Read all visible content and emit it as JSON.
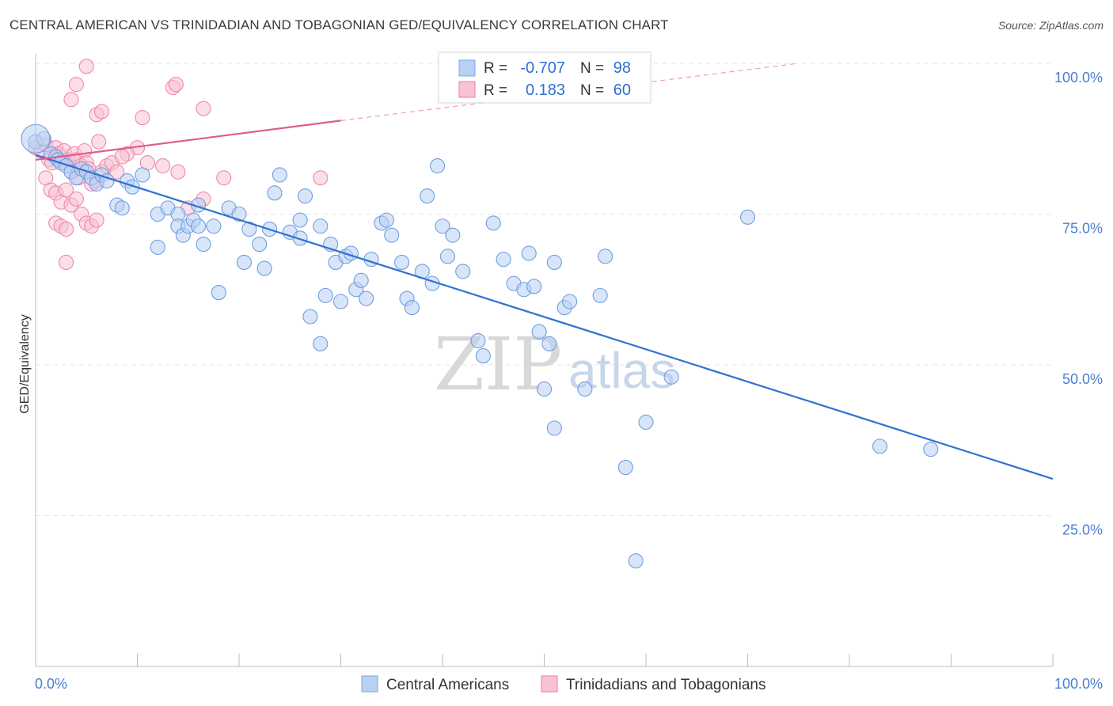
{
  "title": "CENTRAL AMERICAN VS TRINIDADIAN AND TOBAGONIAN GED/EQUIVALENCY CORRELATION CHART",
  "source": "Source: ZipAtlas.com",
  "watermark": {
    "zip": "ZIP",
    "atlas": "atlas"
  },
  "legend_box": {
    "rows": [
      {
        "r_label": "R =",
        "r_value": "-0.707",
        "n_label": "N =",
        "n_value": "98",
        "color": "#7aa8e8"
      },
      {
        "r_label": "R =",
        "r_value": "0.183",
        "n_label": "N =",
        "n_value": "60",
        "color": "#f07aa0"
      }
    ]
  },
  "chart_data": {
    "type": "scatter",
    "title": "CENTRAL AMERICAN VS TRINIDADIAN AND TOBAGONIAN GED/EQUIVALENCY CORRELATION CHART",
    "xlabel": "",
    "ylabel": "GED/Equivalency",
    "xlim": [
      0,
      100
    ],
    "ylim": [
      0,
      100
    ],
    "x_tick_labels": [
      "0.0%",
      "100.0%"
    ],
    "y_tick_labels": [
      "100.0%",
      "75.0%",
      "50.0%",
      "25.0%"
    ],
    "y_ticks": [
      100,
      75,
      50,
      25
    ],
    "grid": true,
    "legend_position": "bottom",
    "series": [
      {
        "name": "Central Americans",
        "color": "#7aa8e8",
        "line_color": "#2f72d0",
        "trend": {
          "x0": 0,
          "y0": 84.8,
          "x1": 100,
          "y1": 31.1
        },
        "points": [
          [
            0.0,
            87.0
          ],
          [
            0.8,
            87.5
          ],
          [
            1.5,
            85.0
          ],
          [
            2.0,
            84.5
          ],
          [
            2.2,
            84.0
          ],
          [
            2.5,
            83.5
          ],
          [
            3.0,
            83.0
          ],
          [
            3.5,
            82.0
          ],
          [
            4.0,
            81.0
          ],
          [
            4.5,
            82.5
          ],
          [
            5.0,
            82.0
          ],
          [
            5.5,
            81.0
          ],
          [
            6.0,
            80.0
          ],
          [
            6.5,
            81.5
          ],
          [
            7.0,
            80.5
          ],
          [
            8.0,
            76.5
          ],
          [
            8.5,
            76.0
          ],
          [
            9.0,
            80.5
          ],
          [
            9.5,
            79.5
          ],
          [
            10.5,
            81.5
          ],
          [
            12.0,
            75.0
          ],
          [
            12.0,
            69.5
          ],
          [
            13.0,
            76.0
          ],
          [
            14.0,
            75.0
          ],
          [
            14.0,
            73.0
          ],
          [
            14.5,
            71.5
          ],
          [
            15.0,
            73.0
          ],
          [
            15.5,
            74.0
          ],
          [
            16.0,
            73.0
          ],
          [
            16.0,
            76.5
          ],
          [
            16.5,
            70.0
          ],
          [
            17.5,
            73.0
          ],
          [
            18.0,
            62.0
          ],
          [
            19.0,
            76.0
          ],
          [
            20.0,
            75.0
          ],
          [
            20.5,
            67.0
          ],
          [
            21.0,
            72.5
          ],
          [
            22.0,
            70.0
          ],
          [
            22.5,
            66.0
          ],
          [
            23.0,
            72.5
          ],
          [
            23.5,
            78.5
          ],
          [
            24.0,
            81.5
          ],
          [
            25.0,
            72.0
          ],
          [
            26.0,
            71.0
          ],
          [
            26.0,
            74.0
          ],
          [
            26.5,
            78.0
          ],
          [
            27.0,
            58.0
          ],
          [
            28.0,
            53.5
          ],
          [
            28.0,
            73.0
          ],
          [
            28.5,
            61.5
          ],
          [
            29.0,
            70.0
          ],
          [
            29.5,
            67.0
          ],
          [
            30.0,
            60.5
          ],
          [
            30.5,
            68.0
          ],
          [
            31.0,
            68.5
          ],
          [
            31.5,
            62.5
          ],
          [
            32.0,
            64.0
          ],
          [
            32.5,
            61.0
          ],
          [
            33.0,
            67.5
          ],
          [
            34.0,
            73.5
          ],
          [
            34.5,
            74.0
          ],
          [
            35.0,
            71.5
          ],
          [
            36.0,
            67.0
          ],
          [
            36.5,
            61.0
          ],
          [
            37.0,
            59.5
          ],
          [
            38.0,
            65.5
          ],
          [
            38.5,
            78.0
          ],
          [
            39.0,
            63.5
          ],
          [
            39.5,
            83.0
          ],
          [
            40.0,
            73.0
          ],
          [
            40.5,
            68.0
          ],
          [
            41.0,
            71.5
          ],
          [
            42.0,
            65.5
          ],
          [
            43.5,
            54.0
          ],
          [
            44.0,
            51.5
          ],
          [
            45.0,
            73.5
          ],
          [
            46.0,
            67.5
          ],
          [
            47.0,
            63.5
          ],
          [
            48.0,
            62.5
          ],
          [
            48.5,
            68.5
          ],
          [
            49.0,
            63.0
          ],
          [
            49.5,
            55.5
          ],
          [
            50.0,
            46.0
          ],
          [
            50.5,
            53.5
          ],
          [
            51.0,
            39.5
          ],
          [
            51.0,
            67.0
          ],
          [
            52.0,
            59.5
          ],
          [
            52.5,
            60.5
          ],
          [
            54.0,
            46.0
          ],
          [
            55.5,
            61.5
          ],
          [
            56.0,
            68.0
          ],
          [
            58.0,
            33.0
          ],
          [
            59.0,
            17.5
          ],
          [
            60.0,
            40.5
          ],
          [
            62.5,
            48.0
          ],
          [
            70.0,
            74.5
          ],
          [
            83.0,
            36.5
          ],
          [
            88.0,
            36.0
          ]
        ]
      },
      {
        "name": "Trinidadians and Tobagonians",
        "color": "#f07aa0",
        "line_color": "#e05c8a",
        "trend": {
          "x0": 0,
          "y0": 84.0,
          "x1": 30,
          "y1": 90.5
        },
        "trend_dashed_to": {
          "x": 75,
          "y": 100.0
        },
        "points": [
          [
            0.0,
            86.0
          ],
          [
            0.5,
            85.5
          ],
          [
            1.0,
            86.5
          ],
          [
            1.3,
            84.0
          ],
          [
            1.6,
            83.5
          ],
          [
            2.0,
            86.0
          ],
          [
            2.2,
            85.0
          ],
          [
            2.5,
            84.5
          ],
          [
            2.8,
            85.5
          ],
          [
            3.0,
            83.5
          ],
          [
            3.2,
            84.0
          ],
          [
            3.5,
            82.0
          ],
          [
            3.8,
            85.0
          ],
          [
            4.0,
            84.0
          ],
          [
            4.2,
            81.0
          ],
          [
            4.5,
            83.0
          ],
          [
            4.8,
            85.5
          ],
          [
            5.0,
            83.5
          ],
          [
            5.2,
            82.5
          ],
          [
            5.5,
            80.0
          ],
          [
            6.0,
            80.5
          ],
          [
            6.2,
            87.0
          ],
          [
            6.5,
            82.0
          ],
          [
            7.0,
            83.0
          ],
          [
            7.5,
            83.5
          ],
          [
            8.0,
            82.0
          ],
          [
            1.0,
            81.0
          ],
          [
            1.5,
            79.0
          ],
          [
            2.0,
            78.5
          ],
          [
            2.5,
            77.0
          ],
          [
            3.0,
            79.0
          ],
          [
            3.5,
            76.5
          ],
          [
            4.0,
            77.5
          ],
          [
            4.5,
            75.0
          ],
          [
            5.0,
            73.5
          ],
          [
            2.0,
            73.5
          ],
          [
            2.5,
            73.0
          ],
          [
            3.0,
            72.5
          ],
          [
            5.5,
            73.0
          ],
          [
            6.0,
            74.0
          ],
          [
            3.0,
            67.0
          ],
          [
            4.0,
            96.5
          ],
          [
            3.5,
            94.0
          ],
          [
            5.0,
            99.5
          ],
          [
            6.0,
            91.5
          ],
          [
            6.5,
            92.0
          ],
          [
            10.5,
            91.0
          ],
          [
            13.5,
            96.0
          ],
          [
            13.8,
            96.5
          ],
          [
            16.5,
            92.5
          ],
          [
            11.0,
            83.5
          ],
          [
            12.5,
            83.0
          ],
          [
            14.0,
            82.0
          ],
          [
            15.0,
            76.0
          ],
          [
            16.5,
            77.5
          ],
          [
            10.0,
            86.0
          ],
          [
            9.0,
            85.0
          ],
          [
            8.5,
            84.5
          ],
          [
            18.5,
            81.0
          ],
          [
            28.0,
            81.0
          ]
        ]
      }
    ]
  }
}
